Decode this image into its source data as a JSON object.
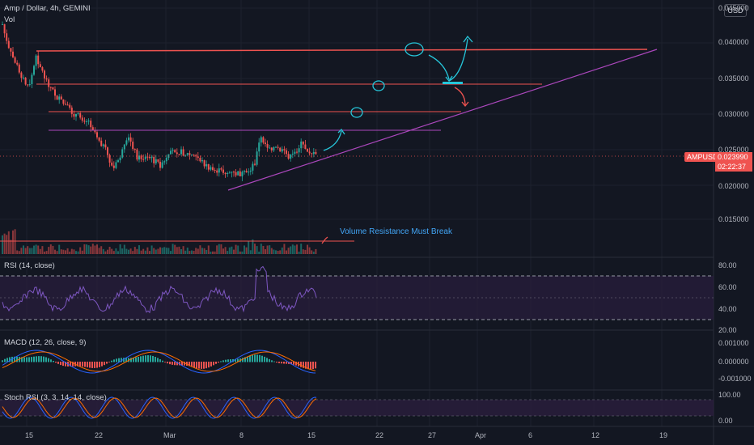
{
  "header": {
    "title": "Amp / Dollar, 4h, GEMINI",
    "vol_label": "Vol",
    "currency_badge": "USD"
  },
  "price_axis": {
    "labels": [
      "0.045000",
      "0.040000",
      "0.035000",
      "0.030000",
      "0.025000",
      "0.020000",
      "0.015000"
    ]
  },
  "last_price": {
    "symbol": "AMPUSD",
    "value": "0.023990",
    "countdown": "02:22:37"
  },
  "annotation": {
    "text": "Volume Resistance Must Break"
  },
  "rsi_pane": {
    "label": "RSI (14, close)",
    "axis": [
      "80.00",
      "60.00",
      "40.00",
      "20.00"
    ]
  },
  "macd_pane": {
    "label": "MACD (12, 26, close, 9)",
    "axis": [
      "0.001000",
      "0.000000",
      "-0.001000"
    ]
  },
  "stoch_pane": {
    "label": "Stoch RSI (3, 3, 14, 14, close)",
    "axis": [
      "100.00",
      "0.00"
    ]
  },
  "time_axis": {
    "labels": [
      "15",
      "22",
      "Mar",
      "8",
      "15",
      "22",
      "27",
      "Apr",
      "6",
      "12",
      "19"
    ]
  },
  "colors": {
    "background": "#131722",
    "up": "#26a69a",
    "down": "#ef5350",
    "trendline": "#ab47bc",
    "resistance": "#ef5350",
    "annotation": "#42a5f5"
  }
}
